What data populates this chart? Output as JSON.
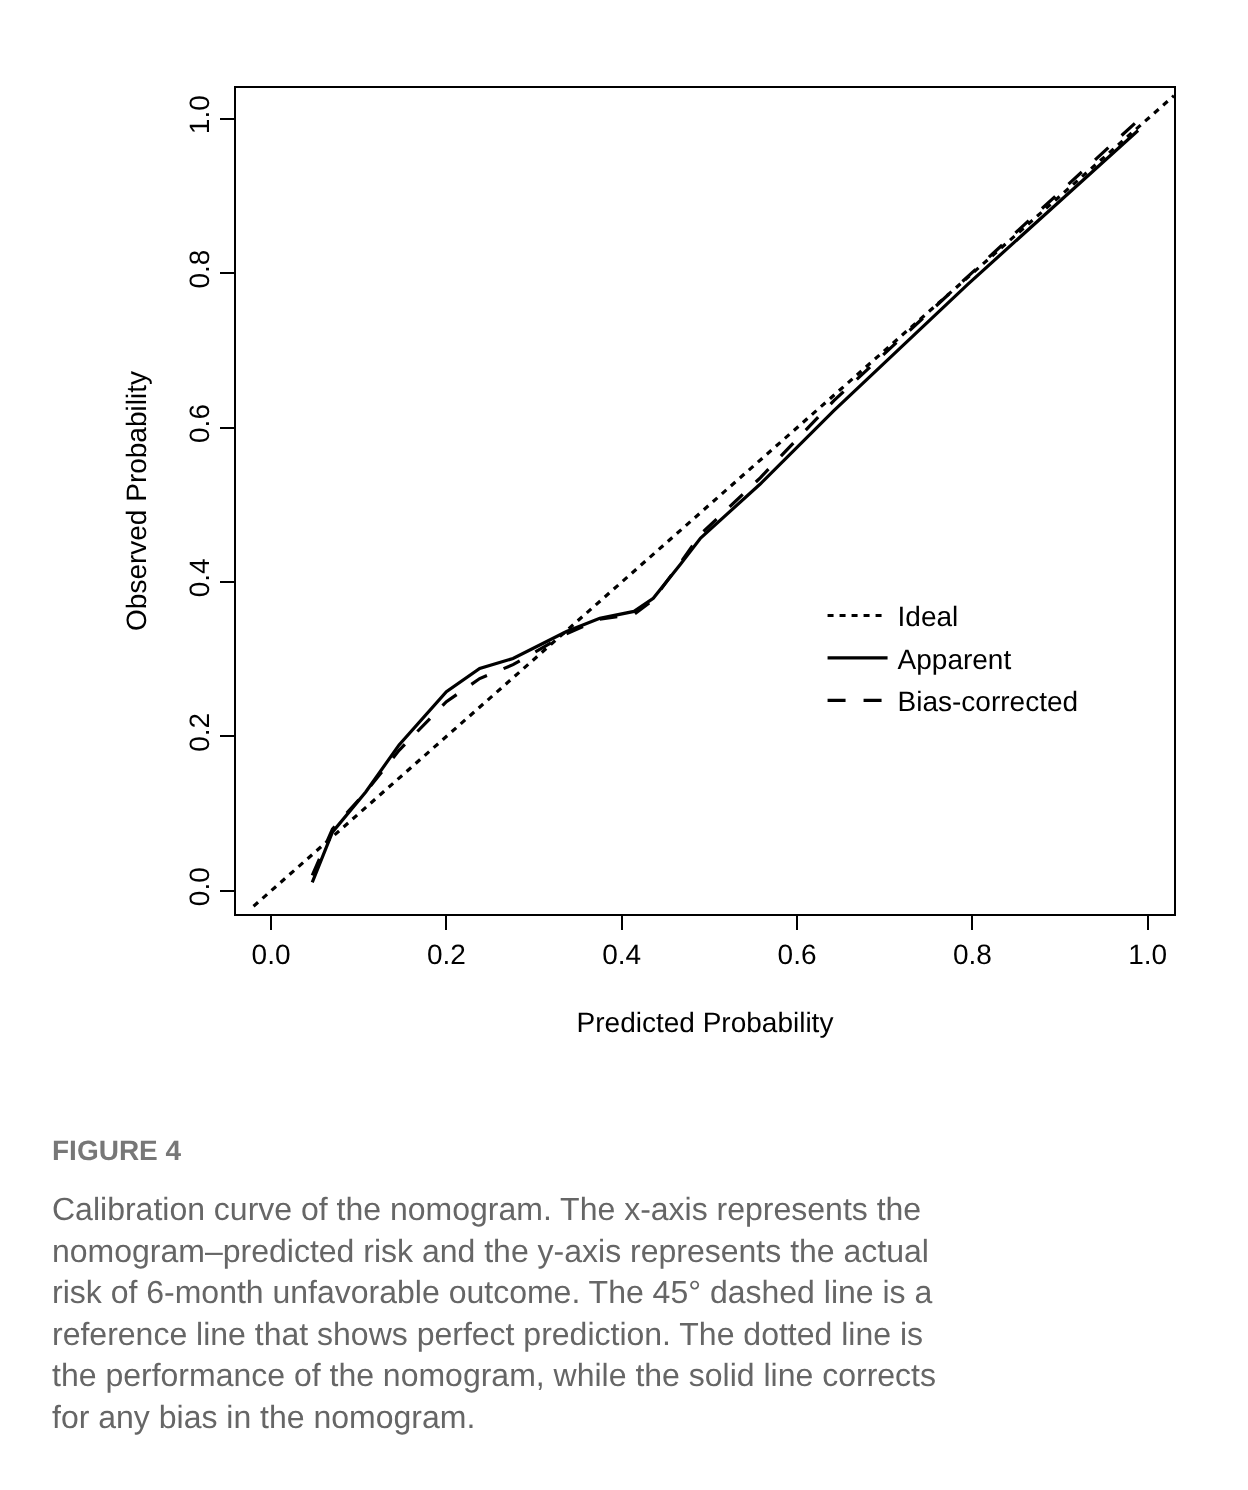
{
  "chart_data": {
    "type": "line",
    "xlabel": "Predicted Probability",
    "ylabel": "Observed Probability",
    "xlim": [
      -0.04,
      1.03
    ],
    "ylim": [
      -0.03,
      1.04
    ],
    "xticks": [
      {
        "value": 0,
        "label": "0.0"
      },
      0.2,
      0.4,
      0.6,
      0.8,
      {
        "value": 1,
        "label": "1.0"
      }
    ],
    "yticks": [
      {
        "value": 0,
        "label": "0.0"
      },
      0.2,
      0.4,
      0.6,
      0.8,
      {
        "value": 1,
        "label": "1.0"
      }
    ],
    "legend": "bottom right",
    "marker": "none",
    "series": [
      {
        "name": "Ideal",
        "color": "#000000",
        "line_style": "dotted",
        "x": [
          -0.02,
          1.03
        ],
        "values": [
          -0.02,
          1.03
        ]
      },
      {
        "name": "Apparent",
        "color": "#000000",
        "line_style": "solid",
        "x": [
          0.047,
          0.07,
          0.108,
          0.146,
          0.2,
          0.238,
          0.276,
          0.337,
          0.375,
          0.414,
          0.436,
          0.467,
          0.49,
          0.558,
          0.642,
          0.795,
          0.989
        ],
        "values": [
          0.011,
          0.076,
          0.128,
          0.189,
          0.258,
          0.288,
          0.301,
          0.336,
          0.353,
          0.362,
          0.379,
          0.423,
          0.457,
          0.527,
          0.622,
          0.786,
          0.985
        ]
      },
      {
        "name": "Bias-corrected",
        "color": "#000000",
        "line_style": "dashed",
        "x": [
          0.047,
          0.07,
          0.108,
          0.146,
          0.2,
          0.238,
          0.276,
          0.337,
          0.375,
          0.414,
          0.436,
          0.467,
          0.49,
          0.558,
          0.642,
          0.795,
          0.989
        ],
        "values": [
          0.02,
          0.08,
          0.128,
          0.182,
          0.245,
          0.275,
          0.293,
          0.333,
          0.352,
          0.358,
          0.377,
          0.425,
          0.462,
          0.535,
          0.635,
          0.796,
          0.998
        ]
      }
    ],
    "annotations": [
      "FIGURE 4",
      "Calibration curve of the nomogram. The x-axis represents the nomogram–predicted risk and the y-axis represents the actual risk of 6-month unfavorable outcome. The 45° dashed line is a reference line that shows perfect prediction. The dotted line is the performance of the nomogram, while the solid line corrects for any bias in the nomogram."
    ]
  }
}
